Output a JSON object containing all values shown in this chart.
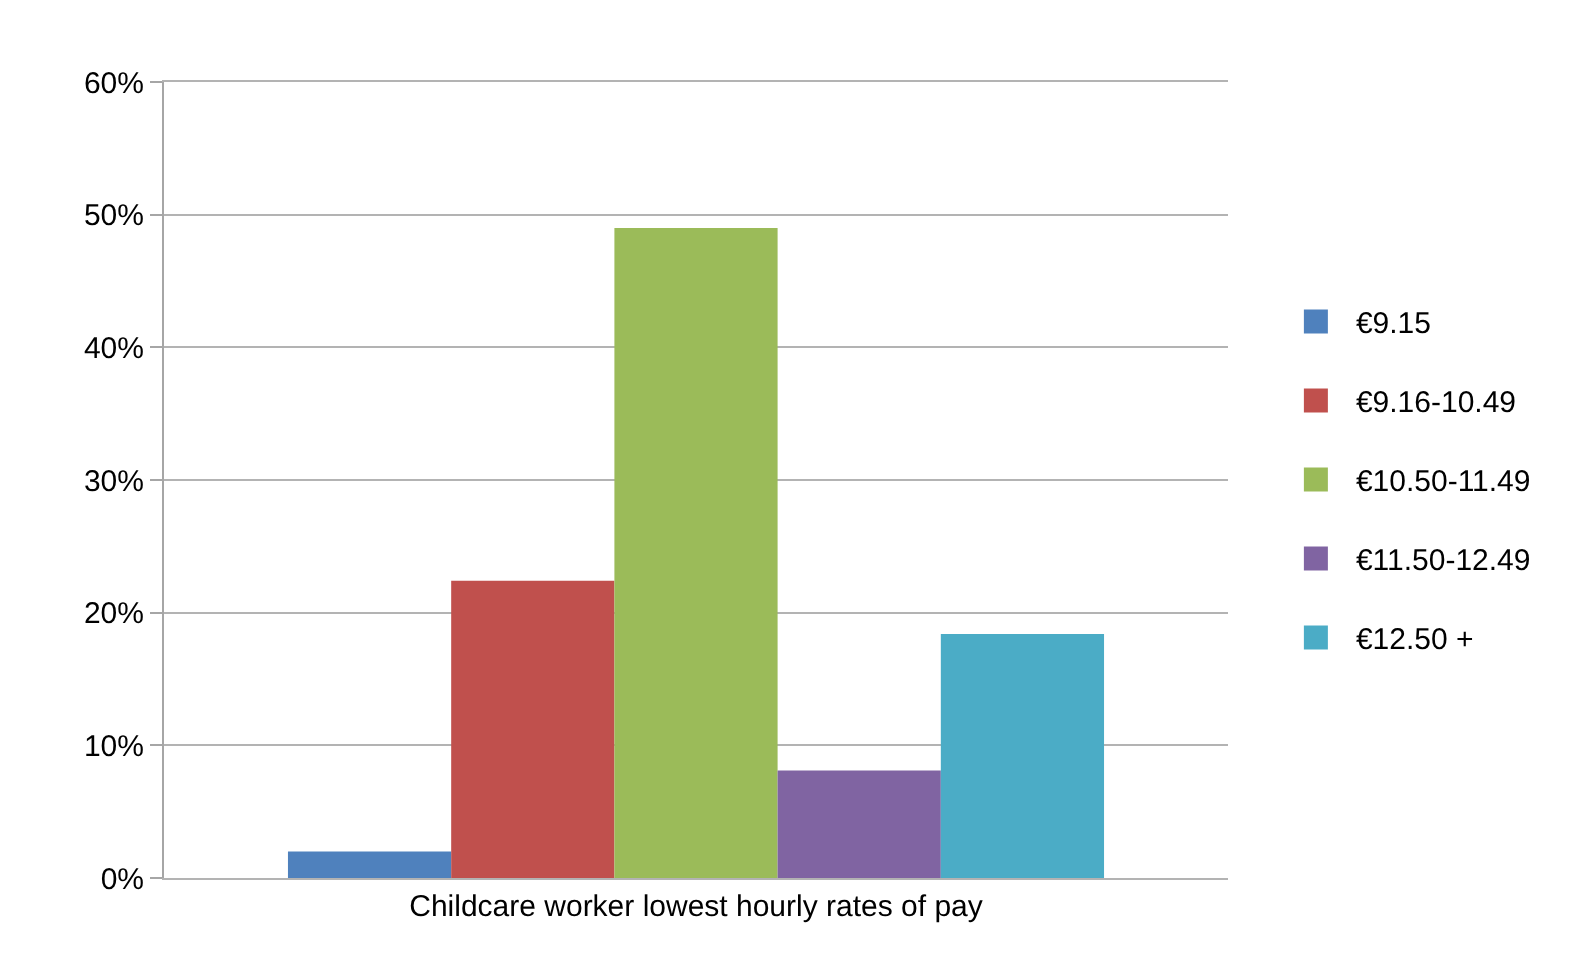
{
  "chart_data": {
    "type": "bar",
    "categories": [
      "Childcare worker lowest hourly rates of pay"
    ],
    "series": [
      {
        "name": "€9.15",
        "color": "#4f81bd",
        "values": [
          2.0
        ]
      },
      {
        "name": "€9.16-10.49",
        "color": "#c0504d",
        "values": [
          22.4
        ]
      },
      {
        "name": "€10.50-11.49",
        "color": "#9bbb59",
        "values": [
          49.0
        ]
      },
      {
        "name": "€11.50-12.49",
        "color": "#8064a2",
        "values": [
          8.1
        ]
      },
      {
        "name": "€12.50 +",
        "color": "#4bacc6",
        "values": [
          18.4
        ]
      }
    ],
    "ylim": [
      0,
      60
    ],
    "yticks": [
      {
        "value": 0,
        "label": "0%"
      },
      {
        "value": 10,
        "label": "10%"
      },
      {
        "value": 20,
        "label": "20%"
      },
      {
        "value": 30,
        "label": "30%"
      },
      {
        "value": 40,
        "label": "40%"
      },
      {
        "value": 50,
        "label": "50%"
      },
      {
        "value": 60,
        "label": "60%"
      }
    ],
    "grid": "y",
    "legend": "right"
  }
}
